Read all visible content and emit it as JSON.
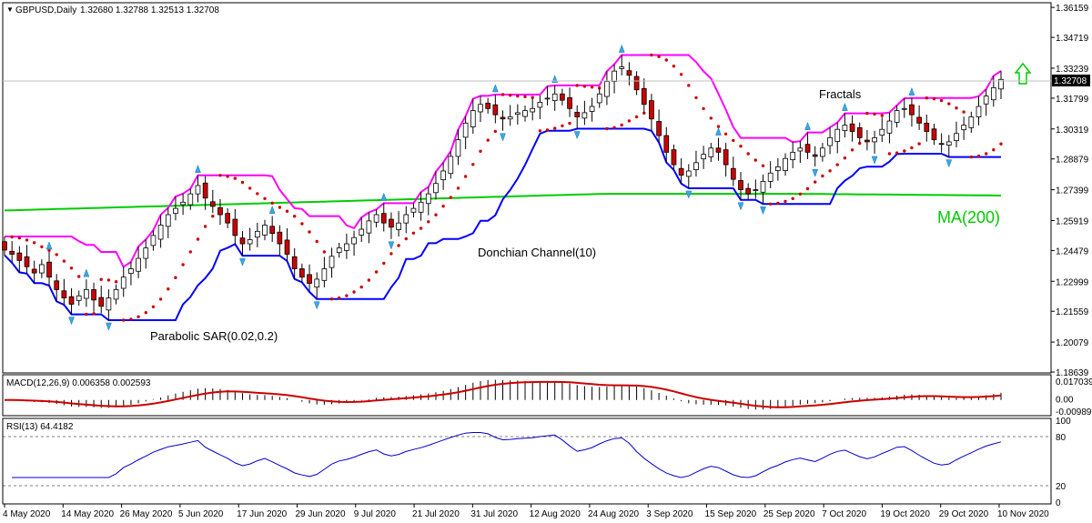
{
  "chart_data": {
    "type": "candlestick",
    "instrument_header": "GBPUSD,Daily",
    "ohlc_header": "1.32680 1.32788 1.32513 1.32708",
    "last_price_label": "1.32708",
    "price_ylim": [
      1.1864,
      1.3634
    ],
    "price_ticks": [
      "1.36159",
      "1.34719",
      "1.33239",
      "1.31799",
      "1.30319",
      "1.28879",
      "1.27399",
      "1.25919",
      "1.24479",
      "1.22999",
      "1.21559",
      "1.20079",
      "1.18639"
    ],
    "x_ticks": [
      "4 May 2020",
      "14 May 2020",
      "26 May 2020",
      "5 Jun 2020",
      "17 Jun 2020",
      "29 Jun 2020",
      "9 Jul 2020",
      "21 Jul 2020",
      "31 Jul 2020",
      "12 Aug 2020",
      "24 Aug 2020",
      "3 Sep 2020",
      "15 Sep 2020",
      "25 Sep 2020",
      "7 Oct 2020",
      "19 Oct 2020",
      "29 Oct 2020",
      "10 Nov 2020"
    ],
    "annotations": {
      "fractals": "Fractals",
      "donchian": "Donchian Channel(10)",
      "sar": "Parabolic SAR(0.02,0.2)",
      "ma": "MA(200)"
    },
    "close_series": [
      1.245,
      1.243,
      1.24,
      1.237,
      1.234,
      1.238,
      1.232,
      1.226,
      1.222,
      1.219,
      1.223,
      1.226,
      1.221,
      1.218,
      1.222,
      1.226,
      1.232,
      1.236,
      1.241,
      1.246,
      1.252,
      1.257,
      1.262,
      1.265,
      1.268,
      1.272,
      1.276,
      1.27,
      1.266,
      1.262,
      1.258,
      1.252,
      1.248,
      1.25,
      1.254,
      1.257,
      1.253,
      1.248,
      1.243,
      1.236,
      1.232,
      1.229,
      1.231,
      1.236,
      1.242,
      1.246,
      1.248,
      1.251,
      1.255,
      1.259,
      1.262,
      1.258,
      1.256,
      1.258,
      1.262,
      1.265,
      1.268,
      1.272,
      1.277,
      1.283,
      1.29,
      1.298,
      1.306,
      1.312,
      1.315,
      1.313,
      1.31,
      1.308,
      1.309,
      1.311,
      1.312,
      1.313,
      1.316,
      1.318,
      1.32,
      1.317,
      1.313,
      1.309,
      1.311,
      1.314,
      1.32,
      1.326,
      1.331,
      1.333,
      1.329,
      1.322,
      1.315,
      1.308,
      1.3,
      1.292,
      1.286,
      1.281,
      1.283,
      1.287,
      1.291,
      1.294,
      1.292,
      1.286,
      1.279,
      1.274,
      1.272,
      1.274,
      1.278,
      1.282,
      1.285,
      1.289,
      1.292,
      1.294,
      1.292,
      1.29,
      1.294,
      1.299,
      1.303,
      1.305,
      1.302,
      1.299,
      1.297,
      1.299,
      1.303,
      1.307,
      1.312,
      1.313,
      1.31,
      1.306,
      1.302,
      1.298,
      1.296,
      1.297,
      1.301,
      1.305,
      1.309,
      1.314,
      1.319,
      1.323,
      1.327
    ],
    "ma200": {
      "start": 1.264,
      "end": 1.272
    },
    "macd": {
      "label": "MACD(12,26,9) 0.006358 0.002593",
      "ticks": [
        "0.017039",
        "0.00",
        "-0.009897"
      ],
      "ylim": [
        -0.012,
        0.019
      ]
    },
    "rsi": {
      "label": "RSI(13) 64.4182",
      "ticks": [
        "100",
        "80",
        "20",
        "0"
      ],
      "levels": [
        80,
        20
      ],
      "ylim": [
        0,
        100
      ]
    },
    "colors": {
      "bull": "#ffffff",
      "bear": "#cc0000",
      "wick": "#000000",
      "ma": "#00cc00",
      "donchian_upper": "#ff00ff",
      "donchian_lower": "#0000ff",
      "sar": "#cc0000",
      "fractal": "#33aaee",
      "macd_signal": "#cc0000",
      "macd_hist": "#000000",
      "rsi": "#0000cc",
      "up_arrow": "#00cc00"
    }
  }
}
